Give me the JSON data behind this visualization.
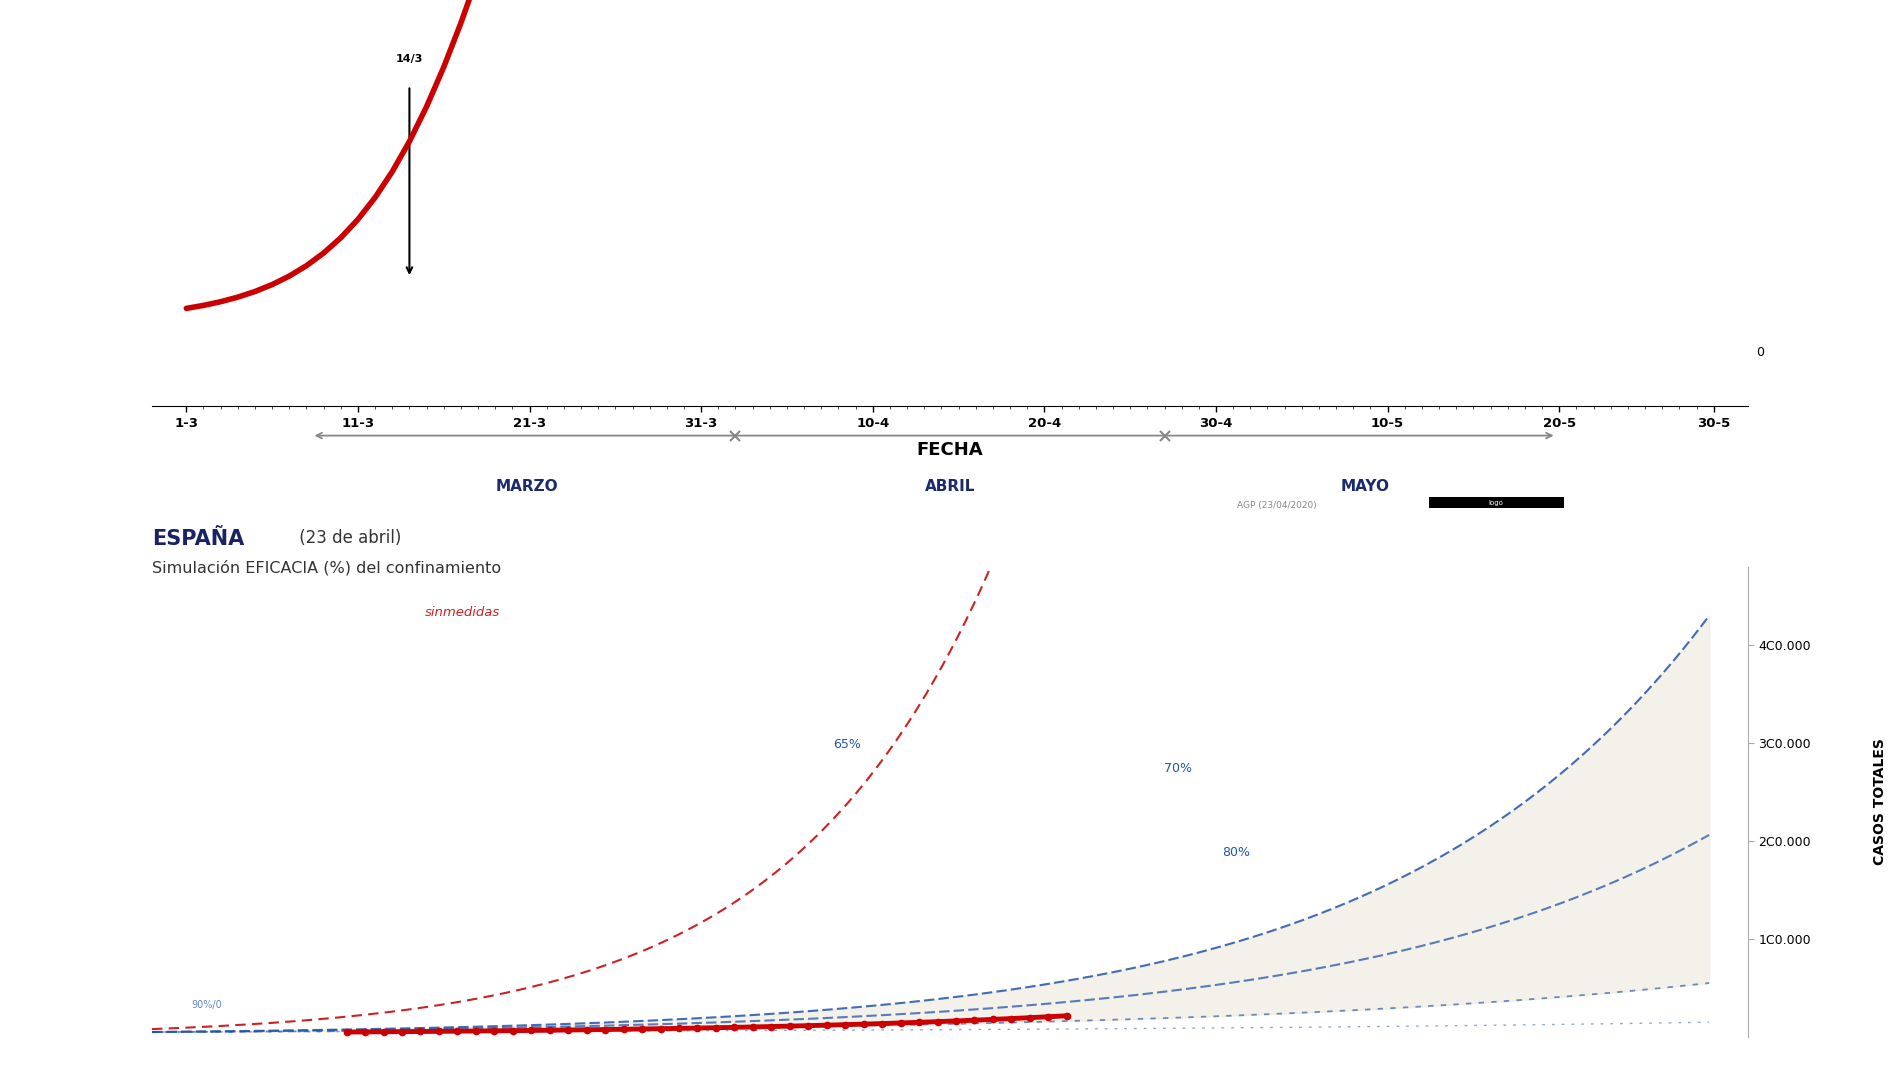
{
  "bg_color": "#ffffff",
  "top_chart": {
    "x_ticks": [
      "1-3",
      "11-3",
      "21-3",
      "31-3",
      "10-4",
      "20-4",
      "30-4",
      "10-5",
      "20-5",
      "30-5"
    ],
    "xlabel": "FECHA",
    "arrow_label": "14/3",
    "curve_color": "#cc0000",
    "watermark": "AGP (23/04/2020)",
    "months": [
      "MARZO",
      "ABRIL",
      "MAYO"
    ],
    "month_color": "#1a2a6c"
  },
  "bottom_chart": {
    "title_bold": "ESPAÑA",
    "title_date": " (23 de abril)",
    "subtitle": "Simulación EFICACIA (%) del confinamiento",
    "ylabel": "CASOS TOTALES",
    "sinmedidas_label": "sinmedidas",
    "label_65": "65%",
    "label_70": "70%",
    "label_80": "80%",
    "label_90": "90%",
    "sinmedidas_color": "#cc2222",
    "scenario_color": "#2255aa",
    "actual_color": "#cc0000",
    "fill_color": "#ece8dc",
    "fill_alpha": 0.6,
    "ytick_labels": [
      "1C0.000",
      "2C0.000",
      "3C0.000",
      "4C0.000"
    ],
    "ytick_vals": [
      100000,
      200000,
      300000,
      400000
    ],
    "ylabel_color": "#000000"
  }
}
